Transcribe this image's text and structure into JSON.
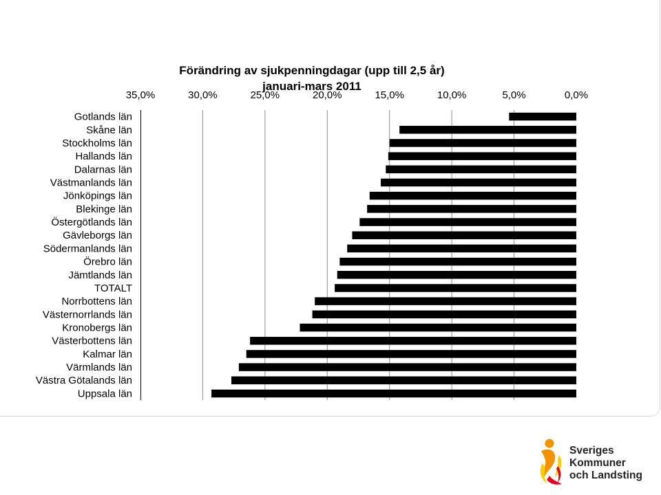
{
  "chart_data": {
    "type": "bar",
    "orientation": "horizontal",
    "title": "Förändring av sjukpenningdagar (upp till 2,5 år)",
    "subtitle": "januari-mars 2011",
    "xlim": [
      0,
      35
    ],
    "x_reversed": true,
    "x_tick_values": [
      35,
      30,
      25,
      20,
      15,
      10,
      5,
      0
    ],
    "x_tick_labels": [
      "35,0%",
      "30,0%",
      "25,0%",
      "20,0%",
      "15,0%",
      "10,0%",
      "5,0%",
      "0,0%"
    ],
    "x_axis_position": "top",
    "grid": "vertical",
    "bar_color": "#000000",
    "categories": [
      "Gotlands län",
      "Skåne län",
      "Stockholms län",
      "Hallands län",
      "Dalarnas län",
      "Västmanlands län",
      "Jönköpings län",
      "Blekinge län",
      "Östergötlands län",
      "Gävleborgs län",
      "Södermanlands län",
      "Örebro län",
      "Jämtlands län",
      "TOTALT",
      "Norrbottens län",
      "Västernorrlands län",
      "Kronobergs län",
      "Västerbottens län",
      "Kalmar län",
      "Värmlands län",
      "Västra Götalands län",
      "Uppsala län"
    ],
    "values": [
      5.4,
      14.2,
      15.0,
      15.1,
      15.3,
      15.7,
      16.6,
      16.8,
      17.4,
      18.0,
      18.4,
      19.0,
      19.2,
      19.4,
      21.0,
      21.2,
      22.2,
      26.2,
      26.5,
      27.1,
      27.7,
      29.3
    ]
  },
  "logo": {
    "line1": "Sveriges",
    "line2": "Kommuner",
    "line3": "och Landsting",
    "colors": {
      "orange": "#f39200",
      "yellow": "#ffcc00",
      "red": "#e2001a"
    }
  }
}
